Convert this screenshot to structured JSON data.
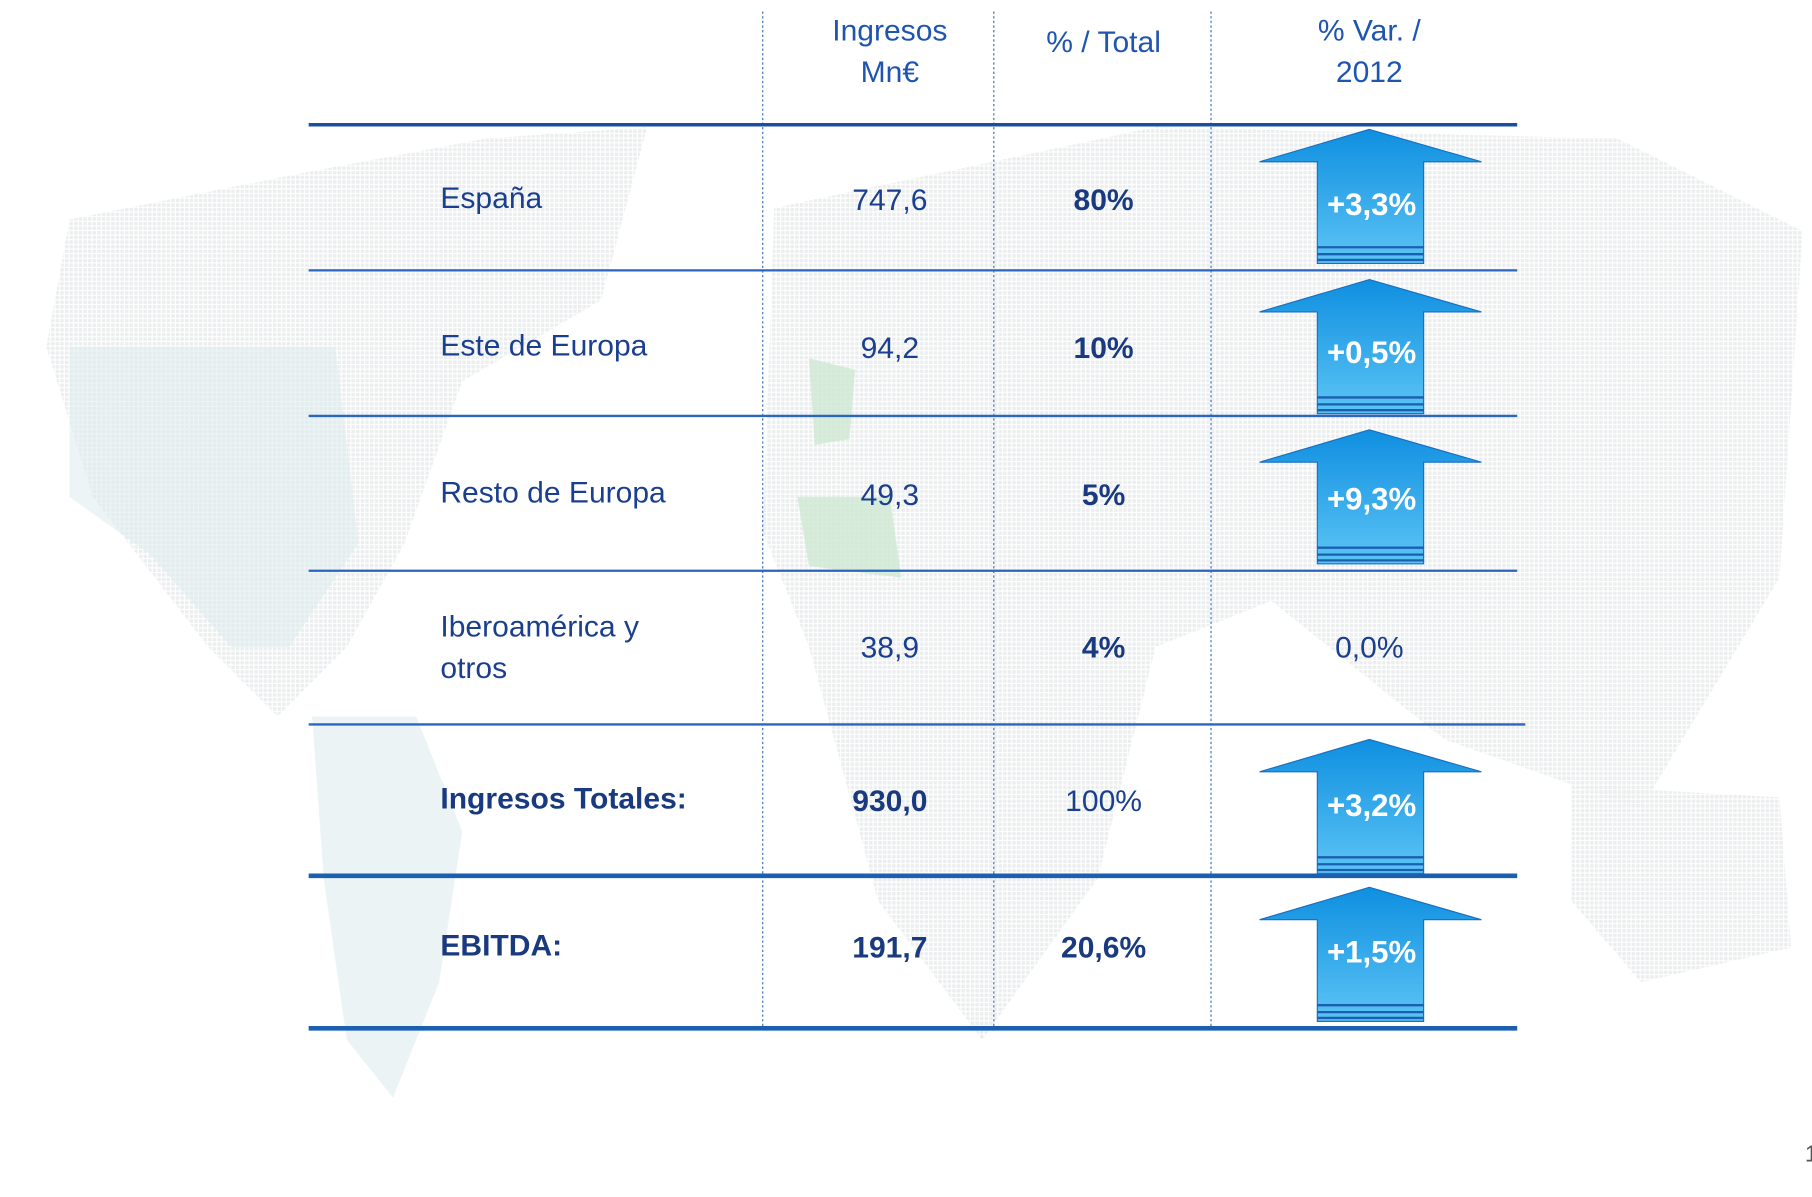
{
  "table": {
    "header": [
      [
        "Ingresos",
        "Mn€"
      ],
      [
        "% / Total"
      ],
      [
        "% Var. /",
        "2012"
      ]
    ],
    "rows": [
      {
        "label": [
          "España"
        ],
        "ingresos": "747,6",
        "pct": "80%",
        "var": "+3,3%",
        "arrow": true
      },
      {
        "label": [
          "Este de Europa"
        ],
        "ingresos": "94,2",
        "pct": "10%",
        "var": "+0,5%",
        "arrow": true
      },
      {
        "label": [
          "Resto de Europa"
        ],
        "ingresos": "49,3",
        "pct": "5%",
        "var": "+9,3%",
        "arrow": true
      },
      {
        "label": [
          "Iberoamérica y",
          "otros"
        ],
        "ingresos": "38,9",
        "pct": "4%",
        "var": "0,0%",
        "arrow": false
      },
      {
        "label": [
          "Ingresos Totales:"
        ],
        "ingresos": "930,0",
        "pct": "100%",
        "var": "+3,2%",
        "arrow": true
      },
      {
        "label": [
          "EBITDA:"
        ],
        "ingresos": "191,7",
        "pct": "20,6%",
        "var": "+1,5%",
        "arrow": true
      }
    ]
  },
  "page_number": "1"
}
